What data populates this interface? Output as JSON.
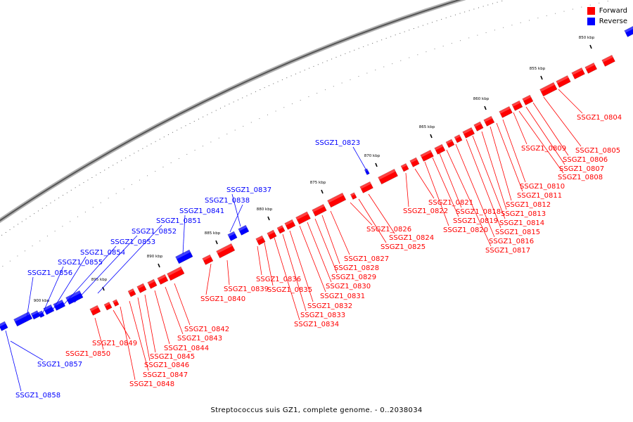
{
  "colors": {
    "forward": "#ff0000",
    "reverse": "#0000ff",
    "backbone": "#888888",
    "tick": "#000000"
  },
  "legend": [
    {
      "label": "Forward",
      "color": "#ff0000"
    },
    {
      "label": "Reverse",
      "color": "#0000ff"
    }
  ],
  "caption": "Streptococcus suis GZ1, complete genome. - 0..2038034",
  "ticks": [
    "850 kbp",
    "855 kbp",
    "860 kbp",
    "865 kbp",
    "870 kbp",
    "875 kbp",
    "880 kbp",
    "885 kbp",
    "890 kbp",
    "895 kbp",
    "900 kbp"
  ],
  "genes": [
    {
      "label": "SSGZ1_0804",
      "strand": "forward"
    },
    {
      "label": "SSGZ1_0805",
      "strand": "forward"
    },
    {
      "label": "SSGZ1_0806",
      "strand": "forward"
    },
    {
      "label": "SSGZ1_0807",
      "strand": "forward"
    },
    {
      "label": "SSGZ1_0808",
      "strand": "forward"
    },
    {
      "label": "SSGZ1_0809",
      "strand": "forward"
    },
    {
      "label": "SSGZ1_0810",
      "strand": "forward"
    },
    {
      "label": "SSGZ1_0811",
      "strand": "forward"
    },
    {
      "label": "SSGZ1_0812",
      "strand": "forward"
    },
    {
      "label": "SSGZ1_0813",
      "strand": "forward"
    },
    {
      "label": "SSGZ1_0814",
      "strand": "forward"
    },
    {
      "label": "SSGZ1_0815",
      "strand": "forward"
    },
    {
      "label": "SSGZ1_0816",
      "strand": "forward"
    },
    {
      "label": "SSGZ1_0817",
      "strand": "forward"
    },
    {
      "label": "SSGZ1_0818",
      "strand": "forward"
    },
    {
      "label": "SSGZ1_0819",
      "strand": "forward"
    },
    {
      "label": "SSGZ1_0820",
      "strand": "forward"
    },
    {
      "label": "SSGZ1_0821",
      "strand": "forward"
    },
    {
      "label": "SSGZ1_0822",
      "strand": "forward"
    },
    {
      "label": "SSGZ1_0823",
      "strand": "reverse"
    },
    {
      "label": "SSGZ1_0824",
      "strand": "forward"
    },
    {
      "label": "SSGZ1_0825",
      "strand": "forward"
    },
    {
      "label": "SSGZ1_0826",
      "strand": "forward"
    },
    {
      "label": "SSGZ1_0827",
      "strand": "forward"
    },
    {
      "label": "SSGZ1_0828",
      "strand": "forward"
    },
    {
      "label": "SSGZ1_0829",
      "strand": "forward"
    },
    {
      "label": "SSGZ1_0830",
      "strand": "forward"
    },
    {
      "label": "SSGZ1_0831",
      "strand": "forward"
    },
    {
      "label": "SSGZ1_0832",
      "strand": "forward"
    },
    {
      "label": "SSGZ1_0833",
      "strand": "forward"
    },
    {
      "label": "SSGZ1_0834",
      "strand": "forward"
    },
    {
      "label": "SSGZ1_0835",
      "strand": "forward"
    },
    {
      "label": "SSGZ1_0836",
      "strand": "forward"
    },
    {
      "label": "SSGZ1_0837",
      "strand": "reverse"
    },
    {
      "label": "SSGZ1_0838",
      "strand": "reverse"
    },
    {
      "label": "SSGZ1_0839",
      "strand": "forward"
    },
    {
      "label": "SSGZ1_0840",
      "strand": "forward"
    },
    {
      "label": "SSGZ1_0841",
      "strand": "reverse"
    },
    {
      "label": "SSGZ1_0842",
      "strand": "forward"
    },
    {
      "label": "SSGZ1_0843",
      "strand": "forward"
    },
    {
      "label": "SSGZ1_0844",
      "strand": "forward"
    },
    {
      "label": "SSGZ1_0845",
      "strand": "forward"
    },
    {
      "label": "SSGZ1_0846",
      "strand": "forward"
    },
    {
      "label": "SSGZ1_0847",
      "strand": "forward"
    },
    {
      "label": "SSGZ1_0848",
      "strand": "forward"
    },
    {
      "label": "SSGZ1_0849",
      "strand": "forward"
    },
    {
      "label": "SSGZ1_0850",
      "strand": "forward"
    },
    {
      "label": "SSGZ1_0851",
      "strand": "reverse"
    },
    {
      "label": "SSGZ1_0852",
      "strand": "reverse"
    },
    {
      "label": "SSGZ1_0853",
      "strand": "reverse"
    },
    {
      "label": "SSGZ1_0854",
      "strand": "reverse"
    },
    {
      "label": "SSGZ1_0855",
      "strand": "reverse"
    },
    {
      "label": "SSGZ1_0856",
      "strand": "reverse"
    },
    {
      "label": "SSGZ1_0857",
      "strand": "reverse"
    },
    {
      "label": "SSGZ1_0858",
      "strand": "reverse"
    }
  ]
}
